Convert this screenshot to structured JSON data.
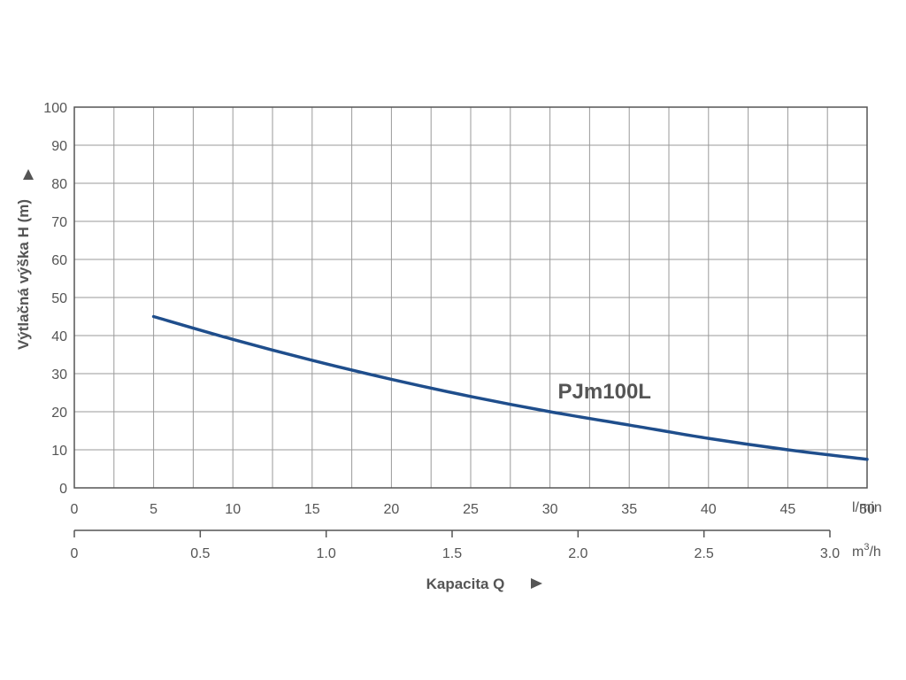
{
  "chart_data": {
    "type": "line",
    "title": "",
    "ylabel": "Výtlačná výška H (m)",
    "xlabel": "Kapacita Q",
    "ylim": [
      0,
      100
    ],
    "yticks": [
      0,
      10,
      20,
      30,
      40,
      50,
      60,
      70,
      80,
      90,
      100
    ],
    "x_primary": {
      "unit": "l/min",
      "range": [
        0,
        50
      ],
      "ticks": [
        0,
        5,
        10,
        15,
        20,
        25,
        30,
        35,
        40,
        45,
        50
      ],
      "tick_labels": [
        "0",
        "5",
        "10",
        "15",
        "20",
        "25",
        "30",
        "35",
        "40",
        "45",
        "50"
      ]
    },
    "x_secondary": {
      "unit": "m³/h",
      "unit_base": "m",
      "unit_sup": "3",
      "unit_tail": "/h",
      "range": [
        0,
        3.0
      ],
      "ticks": [
        0,
        0.5,
        1.0,
        1.5,
        2.0,
        2.5,
        3.0
      ],
      "tick_labels": [
        "0",
        "0.5",
        "1.0",
        "1.5",
        "2.0",
        "2.5",
        "3.0"
      ]
    },
    "grid": true,
    "series": [
      {
        "name": "PJm100L",
        "color": "#1f4e8c",
        "x": [
          5,
          10,
          15,
          20,
          25,
          30,
          35,
          40,
          45,
          50
        ],
        "y": [
          45,
          39,
          33.5,
          28.5,
          24,
          20,
          16.5,
          13,
          10,
          7.5
        ]
      }
    ],
    "colors": {
      "grid": "#9a9a9a",
      "frame": "#555555",
      "text": "#555555",
      "line": "#1f4e8c"
    }
  }
}
